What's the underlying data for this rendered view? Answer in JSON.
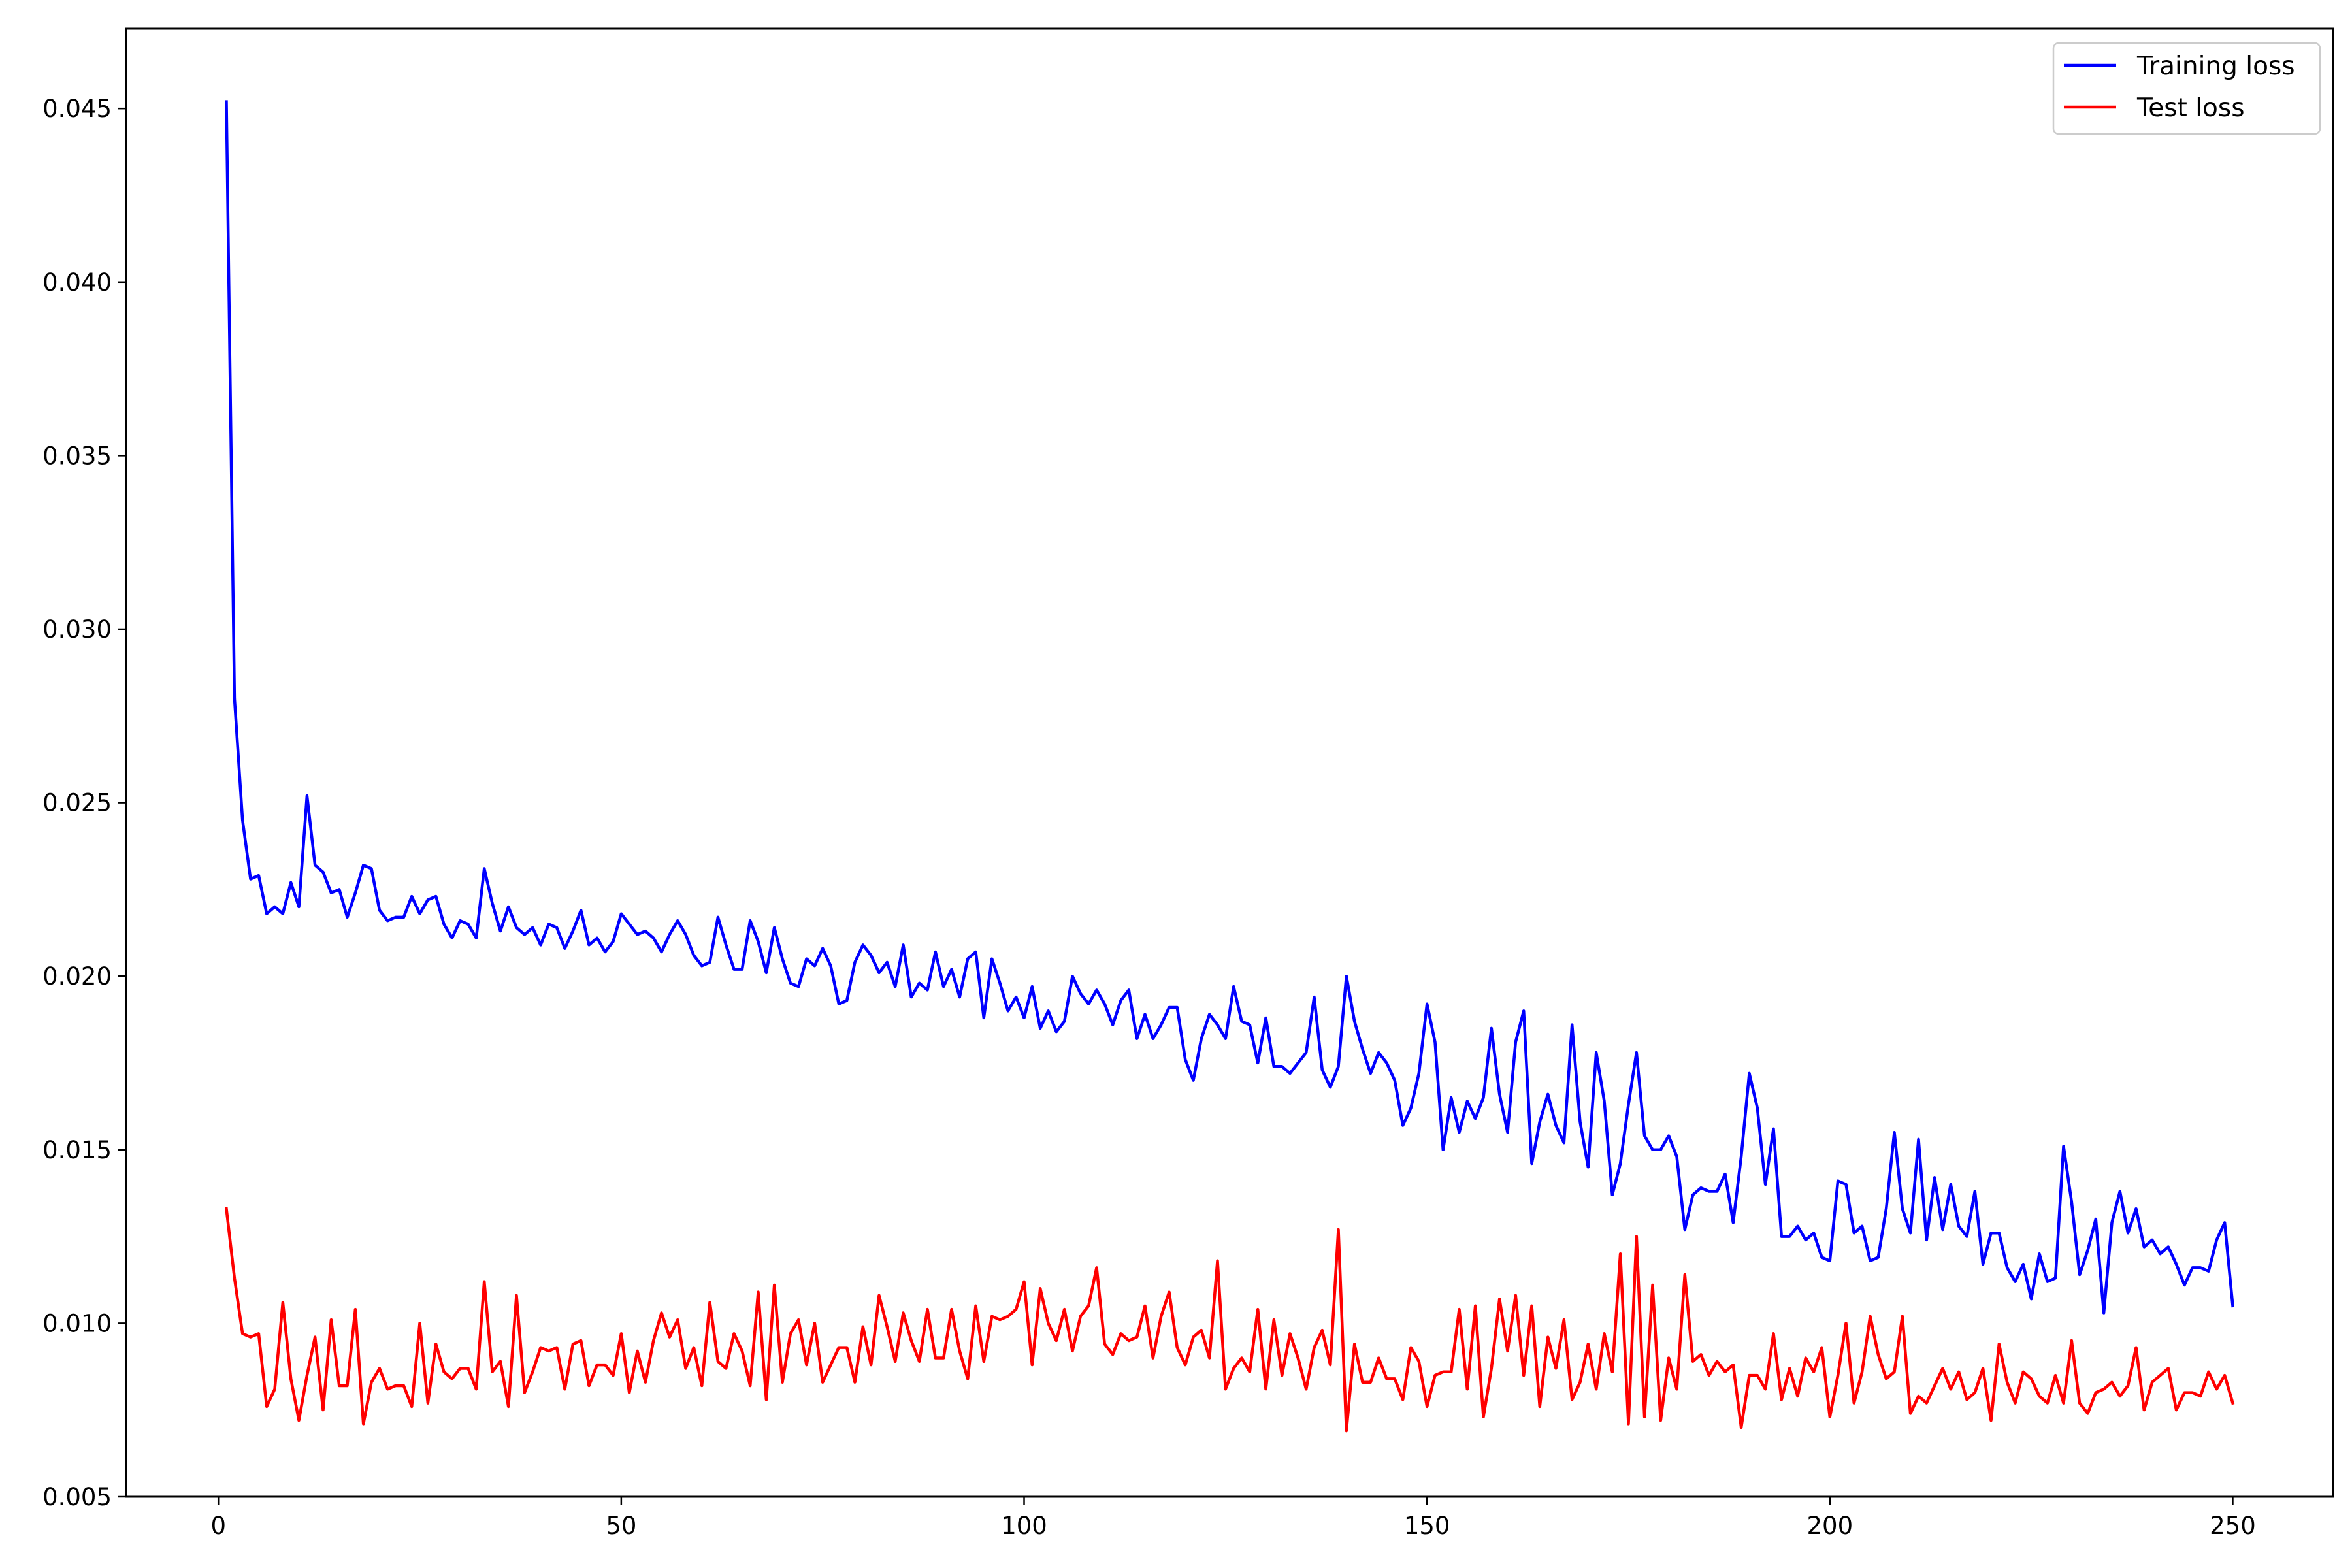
{
  "chart_data": {
    "type": "line",
    "title": "",
    "xlabel": "",
    "ylabel": "",
    "xlim": [
      -11.45,
      262.45
    ],
    "ylim": [
      0.005,
      0.0473
    ],
    "xticks": [
      0,
      50,
      100,
      150,
      200,
      250
    ],
    "xtick_labels": [
      "0",
      "50",
      "100",
      "150",
      "200",
      "250"
    ],
    "yticks": [
      0.005,
      0.01,
      0.015,
      0.02,
      0.025,
      0.03,
      0.035,
      0.04,
      0.045
    ],
    "ytick_labels": [
      "0.005",
      "0.010",
      "0.015",
      "0.020",
      "0.025",
      "0.030",
      "0.035",
      "0.040",
      "0.045"
    ],
    "grid": false,
    "legend_position": "top-right",
    "series": [
      {
        "name": "Training loss",
        "color": "#0000ff",
        "x_start": 1,
        "x_step": 1,
        "values": [
          0.0452,
          0.028,
          0.0245,
          0.0228,
          0.0229,
          0.0218,
          0.022,
          0.0218,
          0.0227,
          0.022,
          0.0252,
          0.0232,
          0.023,
          0.0224,
          0.0225,
          0.0217,
          0.0224,
          0.0232,
          0.0231,
          0.0219,
          0.0216,
          0.0217,
          0.0217,
          0.0223,
          0.0218,
          0.0222,
          0.0223,
          0.0215,
          0.0211,
          0.0216,
          0.0215,
          0.0211,
          0.0231,
          0.0221,
          0.0213,
          0.022,
          0.0214,
          0.0212,
          0.0214,
          0.0209,
          0.0215,
          0.0214,
          0.0208,
          0.0213,
          0.0219,
          0.0209,
          0.0211,
          0.0207,
          0.021,
          0.0218,
          0.0215,
          0.0212,
          0.0213,
          0.0211,
          0.0207,
          0.0212,
          0.0216,
          0.0212,
          0.0206,
          0.0203,
          0.0204,
          0.0217,
          0.0209,
          0.0202,
          0.0202,
          0.0216,
          0.021,
          0.0201,
          0.0214,
          0.0205,
          0.0198,
          0.0197,
          0.0205,
          0.0203,
          0.0208,
          0.0203,
          0.0192,
          0.0193,
          0.0204,
          0.0209,
          0.0206,
          0.0201,
          0.0204,
          0.0197,
          0.0209,
          0.0194,
          0.0198,
          0.0196,
          0.0207,
          0.0197,
          0.0202,
          0.0194,
          0.0205,
          0.0207,
          0.0188,
          0.0205,
          0.0198,
          0.019,
          0.0194,
          0.0188,
          0.0197,
          0.0185,
          0.019,
          0.0184,
          0.0187,
          0.02,
          0.0195,
          0.0192,
          0.0196,
          0.0192,
          0.0186,
          0.0193,
          0.0196,
          0.0182,
          0.0189,
          0.0182,
          0.0186,
          0.0191,
          0.0191,
          0.0176,
          0.017,
          0.0182,
          0.0189,
          0.0186,
          0.0182,
          0.0197,
          0.0187,
          0.0186,
          0.0175,
          0.0188,
          0.0174,
          0.0174,
          0.0172,
          0.0175,
          0.0178,
          0.0194,
          0.0173,
          0.0168,
          0.0174,
          0.02,
          0.0187,
          0.0179,
          0.0172,
          0.0178,
          0.0175,
          0.017,
          0.0157,
          0.0162,
          0.0172,
          0.0192,
          0.0181,
          0.015,
          0.0165,
          0.0155,
          0.0164,
          0.0159,
          0.0165,
          0.0185,
          0.0166,
          0.0155,
          0.0181,
          0.019,
          0.0146,
          0.0158,
          0.0166,
          0.0157,
          0.0152,
          0.0186,
          0.0158,
          0.0145,
          0.0178,
          0.0164,
          0.0137,
          0.0146,
          0.0163,
          0.0178,
          0.0154,
          0.015,
          0.015,
          0.0154,
          0.0148,
          0.0127,
          0.0137,
          0.0139,
          0.0138,
          0.0138,
          0.0143,
          0.0129,
          0.0148,
          0.0172,
          0.0162,
          0.014,
          0.0156,
          0.0125,
          0.0125,
          0.0128,
          0.0124,
          0.0126,
          0.0119,
          0.0118,
          0.0141,
          0.014,
          0.0126,
          0.0128,
          0.0118,
          0.0119,
          0.0133,
          0.0155,
          0.0133,
          0.0126,
          0.0153,
          0.0124,
          0.0142,
          0.0127,
          0.014,
          0.0128,
          0.0125,
          0.0138,
          0.0117,
          0.0126,
          0.0126,
          0.0116,
          0.0112,
          0.0117,
          0.0107,
          0.012,
          0.0112,
          0.0113,
          0.0151,
          0.0135,
          0.0114,
          0.0121,
          0.013,
          0.0103,
          0.0129,
          0.0138,
          0.0126,
          0.0133,
          0.0122,
          0.0124,
          0.012,
          0.0122,
          0.0117,
          0.0111,
          0.0116,
          0.0116,
          0.0115,
          0.0124,
          0.0129,
          0.0105
        ]
      },
      {
        "name": "Test loss",
        "color": "#ff0000",
        "x_start": 1,
        "x_step": 1,
        "values": [
          0.0133,
          0.0113,
          0.0097,
          0.0096,
          0.0097,
          0.0076,
          0.0081,
          0.0106,
          0.0084,
          0.0072,
          0.0085,
          0.0096,
          0.0075,
          0.0101,
          0.0082,
          0.0082,
          0.0104,
          0.0071,
          0.0083,
          0.0087,
          0.0081,
          0.0082,
          0.0082,
          0.0076,
          0.01,
          0.0077,
          0.0094,
          0.0086,
          0.0084,
          0.0087,
          0.0087,
          0.0081,
          0.0112,
          0.0086,
          0.0089,
          0.0076,
          0.0108,
          0.008,
          0.0086,
          0.0093,
          0.0092,
          0.0093,
          0.0081,
          0.0094,
          0.0095,
          0.0082,
          0.0088,
          0.0088,
          0.0085,
          0.0097,
          0.008,
          0.0092,
          0.0083,
          0.0095,
          0.0103,
          0.0096,
          0.0101,
          0.0087,
          0.0093,
          0.0082,
          0.0106,
          0.0089,
          0.0087,
          0.0097,
          0.0092,
          0.0082,
          0.0109,
          0.0078,
          0.0111,
          0.0083,
          0.0097,
          0.0101,
          0.0088,
          0.01,
          0.0083,
          0.0088,
          0.0093,
          0.0093,
          0.0083,
          0.0099,
          0.0088,
          0.0108,
          0.0099,
          0.0089,
          0.0103,
          0.0095,
          0.0089,
          0.0104,
          0.009,
          0.009,
          0.0104,
          0.0092,
          0.0084,
          0.0105,
          0.0089,
          0.0102,
          0.0101,
          0.0102,
          0.0104,
          0.0112,
          0.0088,
          0.011,
          0.01,
          0.0095,
          0.0104,
          0.0092,
          0.0102,
          0.0105,
          0.0116,
          0.0094,
          0.0091,
          0.0097,
          0.0095,
          0.0096,
          0.0105,
          0.009,
          0.0102,
          0.0109,
          0.0093,
          0.0088,
          0.0096,
          0.0098,
          0.009,
          0.0118,
          0.0081,
          0.0087,
          0.009,
          0.0086,
          0.0104,
          0.0081,
          0.0101,
          0.0085,
          0.0097,
          0.009,
          0.0081,
          0.0093,
          0.0098,
          0.0088,
          0.0127,
          0.0069,
          0.0094,
          0.0083,
          0.0083,
          0.009,
          0.0084,
          0.0084,
          0.0078,
          0.0093,
          0.0089,
          0.0076,
          0.0085,
          0.0086,
          0.0086,
          0.0104,
          0.0081,
          0.0105,
          0.0073,
          0.0087,
          0.0107,
          0.0092,
          0.0108,
          0.0085,
          0.0105,
          0.0076,
          0.0096,
          0.0087,
          0.0101,
          0.0078,
          0.0083,
          0.0094,
          0.0081,
          0.0097,
          0.0086,
          0.012,
          0.0071,
          0.0125,
          0.0073,
          0.0111,
          0.0072,
          0.009,
          0.0081,
          0.0114,
          0.0089,
          0.0091,
          0.0085,
          0.0089,
          0.0086,
          0.0088,
          0.007,
          0.0085,
          0.0085,
          0.0081,
          0.0097,
          0.0078,
          0.0087,
          0.0079,
          0.009,
          0.0086,
          0.0093,
          0.0073,
          0.0085,
          0.01,
          0.0077,
          0.0086,
          0.0102,
          0.0091,
          0.0084,
          0.0086,
          0.0102,
          0.0074,
          0.0079,
          0.0077,
          0.0082,
          0.0087,
          0.0081,
          0.0086,
          0.0078,
          0.008,
          0.0087,
          0.0072,
          0.0094,
          0.0083,
          0.0077,
          0.0086,
          0.0084,
          0.0079,
          0.0077,
          0.0085,
          0.0077,
          0.0095,
          0.0077,
          0.0074,
          0.008,
          0.0081,
          0.0083,
          0.0079,
          0.0082,
          0.0093,
          0.0075,
          0.0083,
          0.0085,
          0.0087,
          0.0075,
          0.008,
          0.008,
          0.0079,
          0.0086,
          0.0081,
          0.0085,
          0.0077
        ]
      }
    ]
  }
}
